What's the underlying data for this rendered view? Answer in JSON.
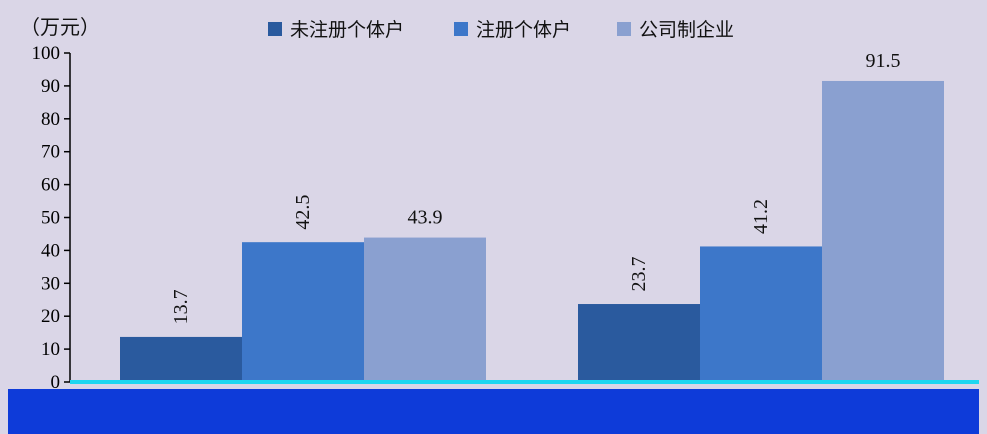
{
  "colors": {
    "plot_bg": "#dad6e7",
    "band": "#0e3bd9",
    "baseline": "#1fd6f0",
    "series": [
      "#2a5a9e",
      "#3d77c9",
      "#8aa0d0"
    ]
  },
  "chart_data": {
    "type": "bar",
    "unit_label": "（万元）",
    "categories": [
      "",
      ""
    ],
    "series": [
      {
        "name": "未注册个体户",
        "values": [
          13.7,
          23.7
        ]
      },
      {
        "name": "注册个体户",
        "values": [
          42.5,
          41.2
        ]
      },
      {
        "name": "公司制企业",
        "values": [
          43.9,
          91.5
        ]
      }
    ],
    "ylim": [
      0,
      100
    ],
    "yticks": [
      0,
      10,
      20,
      30,
      40,
      50,
      60,
      70,
      80,
      90,
      100
    ],
    "value_labels": [
      "13.7",
      "23.7",
      "42.5",
      "41.2",
      "43.9",
      "91.5"
    ],
    "grid": false,
    "legend_position": "top"
  }
}
